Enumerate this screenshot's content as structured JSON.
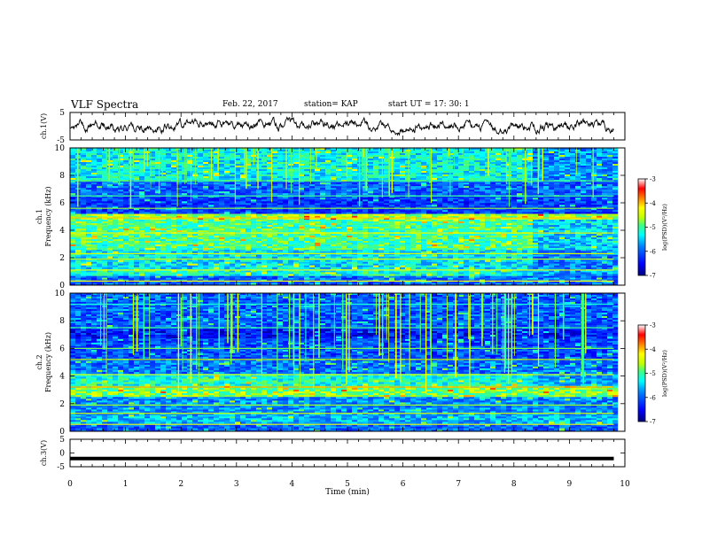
{
  "header": {
    "title": "VLF Spectra",
    "date": "Feb. 22, 2017",
    "station": "station= KAP",
    "start": "start  UT  =   17: 30: 1"
  },
  "colors": {
    "trace": "#000000",
    "colormap": [
      "#000080",
      "#0000ff",
      "#0080ff",
      "#00ffff",
      "#40ff80",
      "#c0ff00",
      "#ffff00",
      "#ff8000",
      "#ff0000",
      "#ffffff"
    ]
  },
  "chart_data": [
    {
      "type": "line",
      "panel": "ch1",
      "ylabel": "ch.1(V)",
      "ylim": [
        -5,
        5
      ],
      "yticks": [
        "5",
        "-5"
      ],
      "xlim": [
        0,
        10
      ],
      "series": [
        {
          "x_range": [
            0,
            9.8
          ],
          "approx_level": 0.2,
          "approx_amplitude": 1.5
        }
      ]
    },
    {
      "type": "heatmap",
      "panel": "ch1-spectrogram",
      "ylabel": "ch.1\nFrequency (kHz)",
      "ylim": [
        0,
        10
      ],
      "yticks": [
        "0",
        "2",
        "4",
        "6",
        "8",
        "10"
      ],
      "xlim": [
        0,
        10
      ],
      "data_x_end": 9.8,
      "colorbar": {
        "label": "log(PSD)(V²/Hz)",
        "range": [
          -7,
          -3
        ],
        "ticks": [
          "-3",
          "-4",
          "-5",
          "-6",
          "-7"
        ]
      },
      "bands": [
        {
          "f": [
            0,
            0.8
          ],
          "level": -6.0
        },
        {
          "f": [
            0.8,
            1.2
          ],
          "level": -5.2
        },
        {
          "f": [
            1.2,
            2.6
          ],
          "level": -5.4
        },
        {
          "f": [
            2.6,
            4.9
          ],
          "level": -5.0
        },
        {
          "f": [
            4.9,
            5.3
          ],
          "level": -4.6
        },
        {
          "f": [
            5.3,
            6.5
          ],
          "level": -6.2
        },
        {
          "f": [
            6.5,
            7.6
          ],
          "level": -6.0
        },
        {
          "f": [
            7.6,
            10
          ],
          "level": -5.3
        }
      ]
    },
    {
      "type": "heatmap",
      "panel": "ch2-spectrogram",
      "ylabel": "ch.2\nFrequency (kHz)",
      "ylim": [
        0,
        10
      ],
      "yticks": [
        "0",
        "2",
        "4",
        "6",
        "8",
        "10"
      ],
      "xlim": [
        0,
        10
      ],
      "data_x_end": 9.8,
      "colorbar": {
        "label": "log(PSD)(V²/Hz)",
        "range": [
          -7,
          -3
        ],
        "ticks": [
          "-3",
          "-4",
          "-5",
          "-6",
          "-7"
        ]
      },
      "bands": [
        {
          "f": [
            0,
            0.6
          ],
          "level": -6.0
        },
        {
          "f": [
            0.6,
            1.2
          ],
          "level": -5.6
        },
        {
          "f": [
            1.2,
            2.6
          ],
          "level": -5.8
        },
        {
          "f": [
            2.6,
            3.4
          ],
          "level": -4.8
        },
        {
          "f": [
            3.4,
            4.2
          ],
          "level": -5.2
        },
        {
          "f": [
            4.2,
            5.2
          ],
          "level": -5.9
        },
        {
          "f": [
            5.2,
            6.8
          ],
          "level": -6.1
        },
        {
          "f": [
            6.8,
            7.5
          ],
          "level": -6.4
        },
        {
          "f": [
            7.5,
            10
          ],
          "level": -6.0
        }
      ]
    },
    {
      "type": "line",
      "panel": "ch3",
      "ylabel": "ch.3(V)",
      "ylim": [
        -5,
        5
      ],
      "yticks": [
        "5",
        "0",
        "-5"
      ],
      "xlim": [
        0,
        10
      ],
      "xticks": [
        "0",
        "1",
        "2",
        "3",
        "4",
        "5",
        "6",
        "7",
        "8",
        "9",
        "10"
      ],
      "xlabel": "Time  (min)",
      "series": [
        {
          "x_range": [
            0,
            9.8
          ],
          "approx_level": -2.0
        }
      ]
    }
  ]
}
